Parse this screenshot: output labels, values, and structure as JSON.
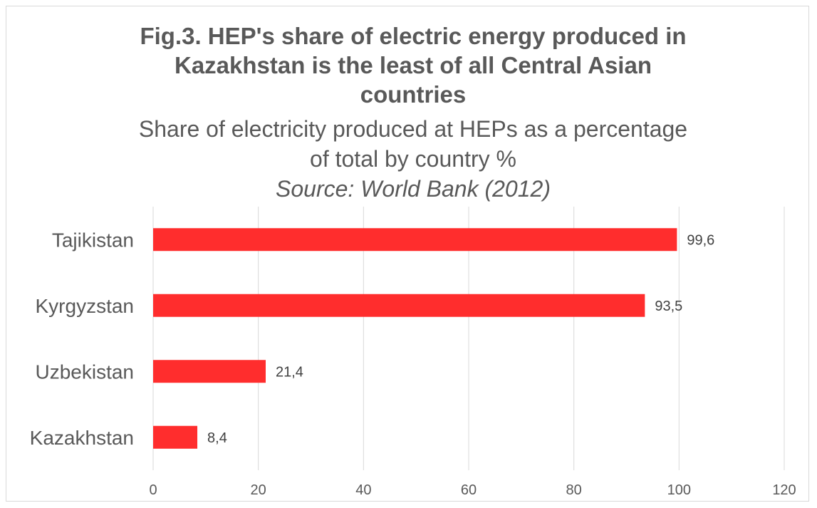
{
  "chart_data": {
    "type": "bar",
    "orientation": "horizontal",
    "title": "Fig.3. HEP's share of electric energy produced in Kazakhstan is the least of all Central Asian countries",
    "title_lines": [
      "Fig.3. HEP's share of electric energy produced in",
      "Kazakhstan is the least of all Central Asian",
      "countries"
    ],
    "subtitle_lines": [
      "Share of electricity produced at HEPs as a percentage",
      "of total by country %"
    ],
    "source": "Source: World Bank (2012)",
    "categories": [
      "Tajikistan",
      "Kyrgyzstan",
      "Uzbekistan",
      "Kazakhstan"
    ],
    "values": [
      99.6,
      93.5,
      21.4,
      8.4
    ],
    "data_labels": [
      "99,6",
      "93,5",
      "21,4",
      "8,4"
    ],
    "xlim": [
      0,
      120
    ],
    "xticks": [
      0,
      20,
      40,
      60,
      80,
      100,
      120
    ],
    "xlabel": "",
    "ylabel": "",
    "grid": "vertical",
    "legend": "none",
    "bar_color": "#ff2d2d"
  }
}
